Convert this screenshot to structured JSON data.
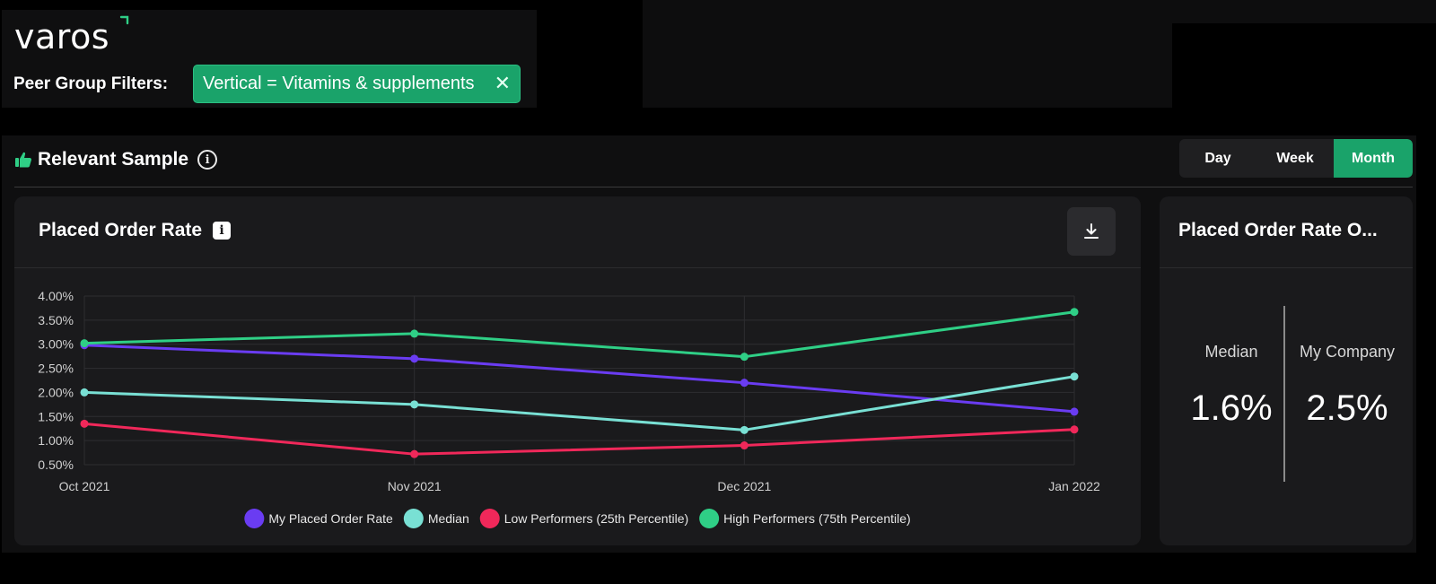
{
  "header": {
    "logo_text": "varos",
    "filters_label": "Peer Group Filters:",
    "filter_chip": "Vertical = Vitamins & supplements",
    "filter_close": "✕"
  },
  "section": {
    "title": "Relevant Sample",
    "info_glyph": "i",
    "granularity": {
      "options": [
        "Day",
        "Week",
        "Month"
      ],
      "selected": "Month"
    }
  },
  "chart_card": {
    "title": "Placed Order Rate",
    "info_glyph": "i"
  },
  "stats_card": {
    "title": "Placed Order Rate O...",
    "median_label": "Median",
    "median_value": "1.6%",
    "mine_label": "My Company",
    "mine_value": "2.5%"
  },
  "colors": {
    "accent_green": "#1aa36a",
    "my_rate": "#6a3cf2",
    "median": "#79e0d4",
    "low": "#f0285a",
    "high": "#2fcf86"
  },
  "icons": {
    "thumb": "thumbs-up-icon",
    "info": "info-icon",
    "download": "download-icon",
    "close": "close-icon"
  },
  "chart_data": {
    "type": "line",
    "categories": [
      "Oct 2021",
      "Nov 2021",
      "Dec 2021",
      "Jan 2022"
    ],
    "y_ticks": [
      "4.00%",
      "3.50%",
      "3.00%",
      "2.50%",
      "2.00%",
      "1.50%",
      "1.00%",
      "0.50%"
    ],
    "ylim": [
      0.5,
      4.0
    ],
    "grid": true,
    "legend_position": "bottom",
    "series": [
      {
        "name": "My Placed Order Rate",
        "color": "#6a3cf2",
        "values": [
          2.98,
          2.7,
          2.2,
          1.6
        ]
      },
      {
        "name": "Median",
        "color": "#79e0d4",
        "values": [
          2.0,
          1.75,
          1.22,
          2.33
        ]
      },
      {
        "name": "Low Performers (25th Percentile)",
        "color": "#f0285a",
        "values": [
          1.35,
          0.72,
          0.9,
          1.23
        ]
      },
      {
        "name": "High Performers (75th Percentile)",
        "color": "#2fcf86",
        "values": [
          3.02,
          3.22,
          2.74,
          3.67
        ]
      }
    ]
  }
}
